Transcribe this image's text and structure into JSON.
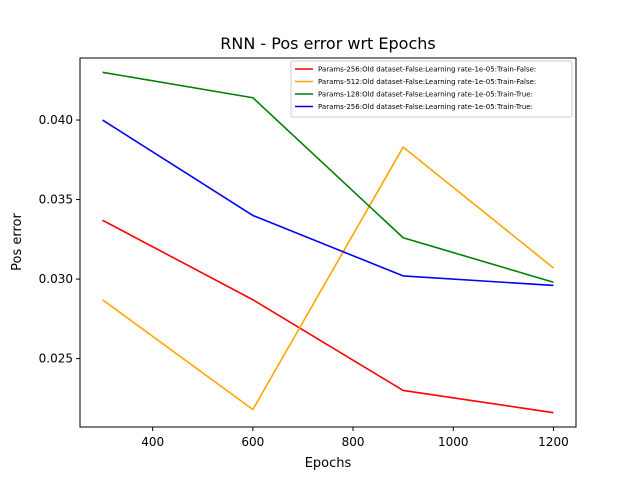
{
  "chart_data": {
    "type": "line",
    "title": "RNN - Pos error wrt Epochs",
    "xlabel": "Epochs",
    "ylabel": "Pos error",
    "x": [
      300,
      600,
      900,
      1200
    ],
    "xlim": [
      255,
      1245
    ],
    "ylim": [
      0.0207,
      0.0439
    ],
    "xticks": [
      400,
      600,
      800,
      1000,
      1200
    ],
    "yticks": [
      0.025,
      0.03,
      0.035,
      0.04
    ],
    "ytick_labels": [
      "0.025",
      "0.030",
      "0.035",
      "0.040"
    ],
    "xtick_labels": [
      "400",
      "600",
      "800",
      "1000",
      "1200"
    ],
    "grid": false,
    "legend_position": "top-right",
    "series": [
      {
        "name": "Params-256:Old dataset-False:Learning rate-1e-05:Train-False:",
        "color": "#ff0000",
        "values": [
          0.0337,
          0.0287,
          0.023,
          0.0216
        ]
      },
      {
        "name": "Params-512:Old dataset-False:Learning rate-1e-05:Train-False:",
        "color": "#ffa500",
        "values": [
          0.0287,
          0.0218,
          0.0383,
          0.0307
        ]
      },
      {
        "name": "Params-128:Old dataset-False:Learning rate-1e-05:Train-True:",
        "color": "#008000",
        "values": [
          0.043,
          0.0414,
          0.0326,
          0.0298
        ]
      },
      {
        "name": "Params-256:Old dataset-False:Learning rate-1e-05:Train-True:",
        "color": "#0000ff",
        "values": [
          0.04,
          0.034,
          0.0302,
          0.0296
        ]
      }
    ]
  }
}
